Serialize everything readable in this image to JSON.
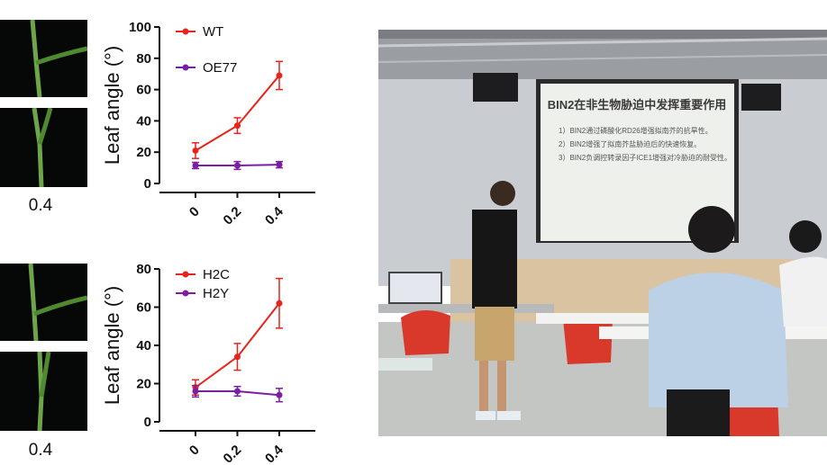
{
  "leaf_panels": {
    "top_value": "0.4",
    "bottom_value": "0.4"
  },
  "chart_data": [
    {
      "type": "line",
      "x": [
        "0",
        "0.2",
        "0.4"
      ],
      "ylabel": "Leaf angle (°)",
      "ylim": [
        0,
        100
      ],
      "yticks": [
        0,
        20,
        40,
        60,
        80,
        100
      ],
      "legend_position": "top-left",
      "grid": false,
      "series": [
        {
          "name": "WT",
          "color": "#e8231b",
          "values": [
            21,
            37,
            69
          ],
          "errors": [
            5,
            5,
            9
          ]
        },
        {
          "name": "OE77",
          "color": "#7b1fa2",
          "values": [
            11.5,
            11.5,
            12
          ],
          "errors": [
            2,
            2.5,
            2
          ]
        }
      ]
    },
    {
      "type": "line",
      "x": [
        "0",
        "0.2",
        "0.4"
      ],
      "ylabel": "Leaf angle (°)",
      "ylim": [
        0,
        80
      ],
      "yticks": [
        0,
        20,
        40,
        60,
        80
      ],
      "legend_position": "top-left",
      "grid": false,
      "series": [
        {
          "name": "H2C",
          "color": "#e8231b",
          "values": [
            18,
            34,
            62
          ],
          "errors": [
            4,
            7,
            13
          ]
        },
        {
          "name": "H2Y",
          "color": "#7b1fa2",
          "values": [
            16,
            16,
            14
          ],
          "errors": [
            3,
            2.5,
            3.5
          ]
        }
      ]
    }
  ],
  "slide": {
    "title": "BIN2在非生物胁迫中发挥重要作用",
    "points": [
      "1）BIN2通过磷酸化RD26增强拟南芥的抗旱性。",
      "2）BIN2增强了拟南芥盐胁迫后的快速恢复。",
      "3）BIN2负调控转录因子ICE1增强对冷胁迫的耐受性。"
    ]
  }
}
